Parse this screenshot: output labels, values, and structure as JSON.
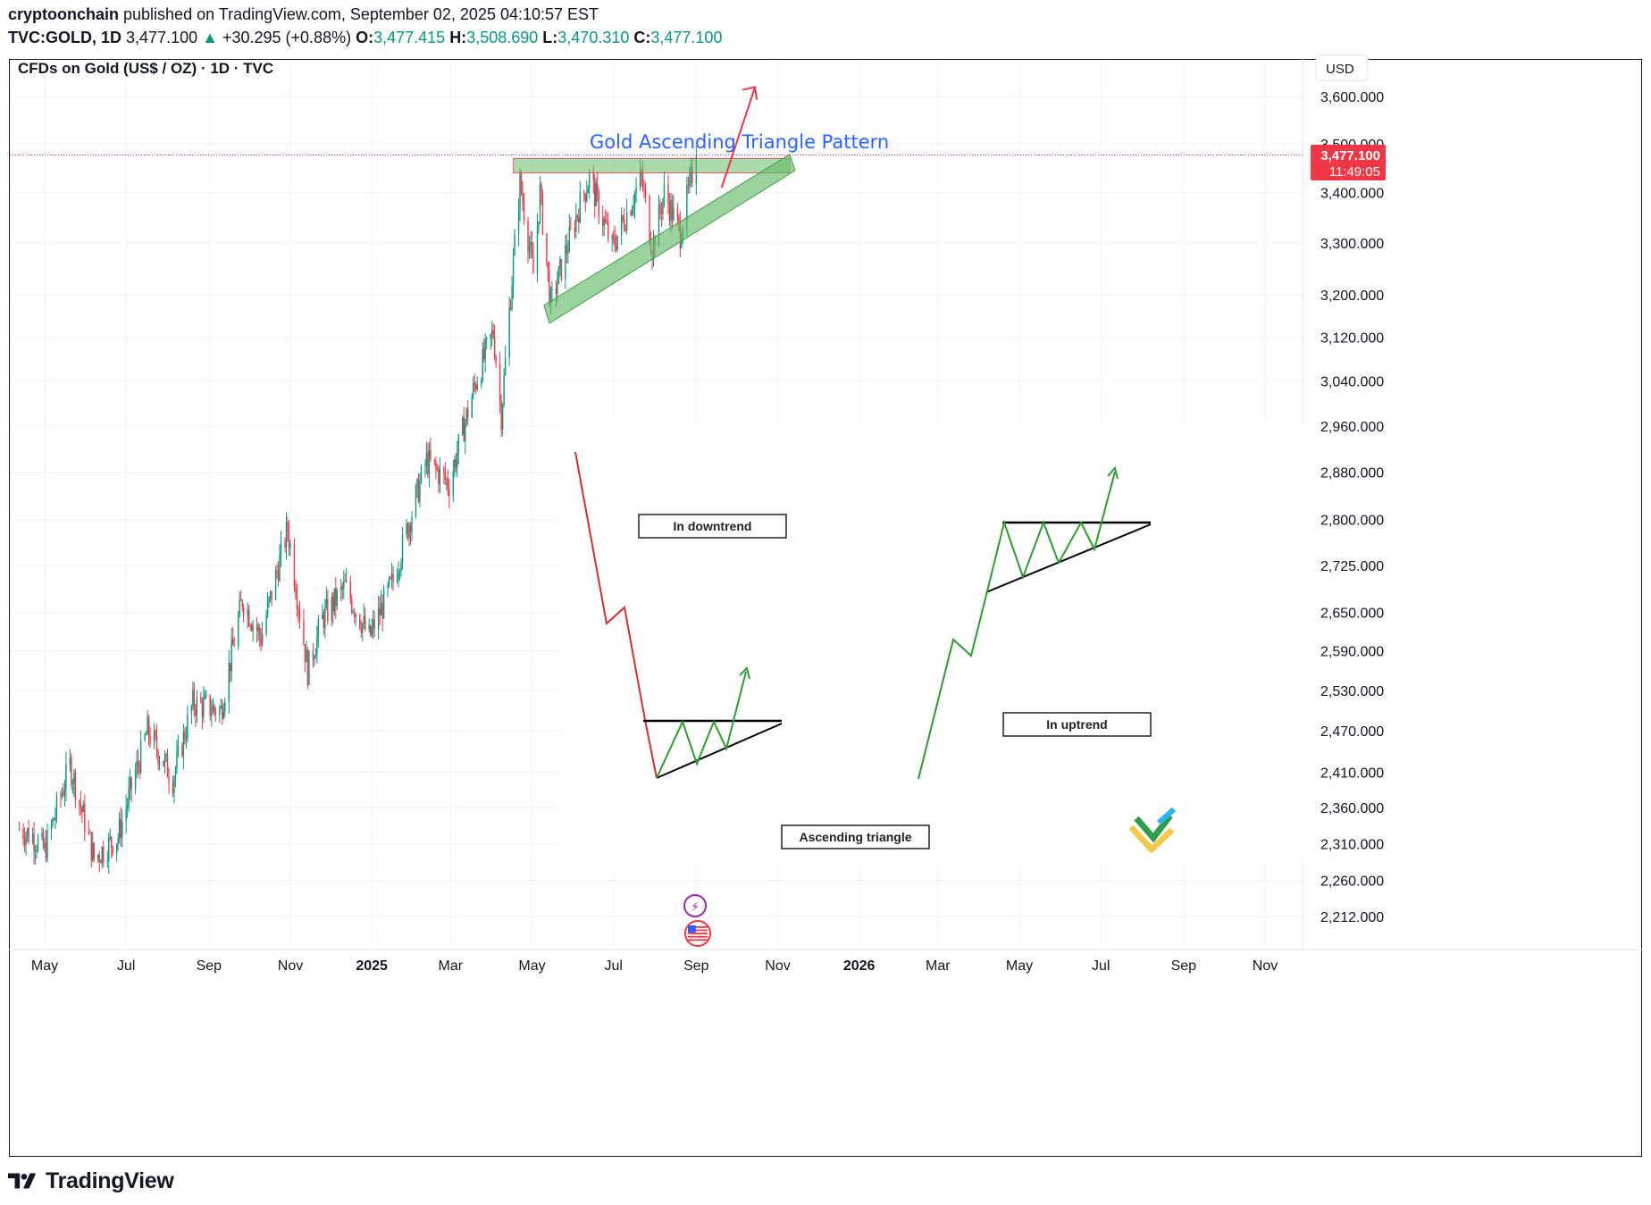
{
  "header": {
    "author": "cryptoonchain",
    "published": " published on TradingView.com, September 02, 2025 04:10:57 EST",
    "symbol": "TVC:GOLD, 1D",
    "last": "3,477.100",
    "change_arrow": "▲",
    "change": "+30.295 (+0.88%)",
    "o_label": "O:",
    "o_value": "3,477.415",
    "h_label": "H:",
    "h_value": "3,508.690",
    "l_label": "L:",
    "l_value": "3,470.310",
    "c_label": "C:",
    "c_value": "3,477.100"
  },
  "footer": {
    "brand": "TradingView",
    "logo_icon": "tradingview-logo-icon"
  },
  "chart_data": {
    "type": "candlestick",
    "title": "CFDs on Gold (US$ / OZ) · 1D · TVC",
    "currency": "USD",
    "last_price_label": "3,477.100",
    "countdown_label": "11:49:05",
    "y_scale": "log",
    "ylim": [
      2180,
      3650
    ],
    "y_ticks": [
      {
        "value": 3600,
        "label": "3,600.000"
      },
      {
        "value": 3500,
        "label": "3,500.000"
      },
      {
        "value": 3400,
        "label": "3,400.000"
      },
      {
        "value": 3300,
        "label": "3,300.000"
      },
      {
        "value": 3200,
        "label": "3,200.000"
      },
      {
        "value": 3120,
        "label": "3,120.000"
      },
      {
        "value": 3040,
        "label": "3,040.000"
      },
      {
        "value": 2960,
        "label": "2,960.000"
      },
      {
        "value": 2880,
        "label": "2,880.000"
      },
      {
        "value": 2800,
        "label": "2,800.000"
      },
      {
        "value": 2725,
        "label": "2,725.000"
      },
      {
        "value": 2650,
        "label": "2,650.000"
      },
      {
        "value": 2590,
        "label": "2,590.000"
      },
      {
        "value": 2530,
        "label": "2,530.000"
      },
      {
        "value": 2470,
        "label": "2,470.000"
      },
      {
        "value": 2410,
        "label": "2,410.000"
      },
      {
        "value": 2360,
        "label": "2,360.000"
      },
      {
        "value": 2310,
        "label": "2,310.000"
      },
      {
        "value": 2260,
        "label": "2,260.000"
      },
      {
        "value": 2212,
        "label": "2,212.000"
      }
    ],
    "x_ticks": [
      {
        "date": "2024-05-01",
        "label": "May"
      },
      {
        "date": "2024-07-01",
        "label": "Jul"
      },
      {
        "date": "2024-09-01",
        "label": "Sep"
      },
      {
        "date": "2024-11-01",
        "label": "Nov"
      },
      {
        "date": "2025-01-01",
        "label": "2025",
        "bold": true
      },
      {
        "date": "2025-03-01",
        "label": "Mar"
      },
      {
        "date": "2025-05-01",
        "label": "May"
      },
      {
        "date": "2025-07-01",
        "label": "Jul"
      },
      {
        "date": "2025-09-01",
        "label": "Sep"
      },
      {
        "date": "2025-11-01",
        "label": "Nov"
      },
      {
        "date": "2026-01-01",
        "label": "2026",
        "bold": true
      },
      {
        "date": "2026-03-01",
        "label": "Mar"
      },
      {
        "date": "2026-05-01",
        "label": "May"
      },
      {
        "date": "2026-07-01",
        "label": "Jul"
      },
      {
        "date": "2026-09-01",
        "label": "Sep"
      },
      {
        "date": "2026-11-01",
        "label": "Nov"
      }
    ],
    "price_path": [
      {
        "date": "2024-04-12",
        "close": 2330
      },
      {
        "date": "2024-04-22",
        "close": 2320
      },
      {
        "date": "2024-05-01",
        "close": 2300
      },
      {
        "date": "2024-05-20",
        "close": 2420
      },
      {
        "date": "2024-06-07",
        "close": 2290
      },
      {
        "date": "2024-06-25",
        "close": 2320
      },
      {
        "date": "2024-07-17",
        "close": 2470
      },
      {
        "date": "2024-08-05",
        "close": 2400
      },
      {
        "date": "2024-08-20",
        "close": 2510
      },
      {
        "date": "2024-09-10",
        "close": 2500
      },
      {
        "date": "2024-09-26",
        "close": 2670
      },
      {
        "date": "2024-10-10",
        "close": 2610
      },
      {
        "date": "2024-10-30",
        "close": 2785
      },
      {
        "date": "2024-11-14",
        "close": 2560
      },
      {
        "date": "2024-11-25",
        "close": 2640
      },
      {
        "date": "2024-12-12",
        "close": 2690
      },
      {
        "date": "2024-12-30",
        "close": 2610
      },
      {
        "date": "2025-01-17",
        "close": 2700
      },
      {
        "date": "2025-02-11",
        "close": 2900
      },
      {
        "date": "2025-02-28",
        "close": 2860
      },
      {
        "date": "2025-03-20",
        "close": 3040
      },
      {
        "date": "2025-04-02",
        "close": 3130
      },
      {
        "date": "2025-04-08",
        "close": 2980
      },
      {
        "date": "2025-04-22",
        "close": 3420
      },
      {
        "date": "2025-05-02",
        "close": 3240
      },
      {
        "date": "2025-05-07",
        "close": 3400
      },
      {
        "date": "2025-05-15",
        "close": 3180
      },
      {
        "date": "2025-06-05",
        "close": 3370
      },
      {
        "date": "2025-06-13",
        "close": 3430
      },
      {
        "date": "2025-06-30",
        "close": 3290
      },
      {
        "date": "2025-07-22",
        "close": 3430
      },
      {
        "date": "2025-07-30",
        "close": 3290
      },
      {
        "date": "2025-08-08",
        "close": 3400
      },
      {
        "date": "2025-08-20",
        "close": 3320
      },
      {
        "date": "2025-09-01",
        "close": 3477
      }
    ],
    "annotations": {
      "pattern_title": "Gold Ascending Triangle Pattern",
      "resistance_zone": {
        "from": "2025-04-17",
        "to": "2025-11-10",
        "low": 3440,
        "high": 3470
      },
      "support_channel": {
        "from_date": "2025-05-10",
        "from_price": 3180,
        "to_date": "2025-11-10",
        "to_price": 3460
      },
      "projection_arrow": {
        "from_date": "2025-09-20",
        "from_price": 3410,
        "to_date": "2025-10-15",
        "to_price": 3620
      },
      "downtrend_label": "In downtrend",
      "uptrend_label": "In uptrend",
      "triangle_label": "Ascending triangle"
    },
    "colors": {
      "up": "#089981",
      "down": "#f23645",
      "zone": "#66bb6a",
      "arrow": "#f23645",
      "title": "#2962ff",
      "last_price_bg": "#f23645"
    },
    "event_icons": [
      "lightning-event-icon",
      "us-flag-event-icon"
    ],
    "watermark_icon": "brand-logo-icon"
  }
}
